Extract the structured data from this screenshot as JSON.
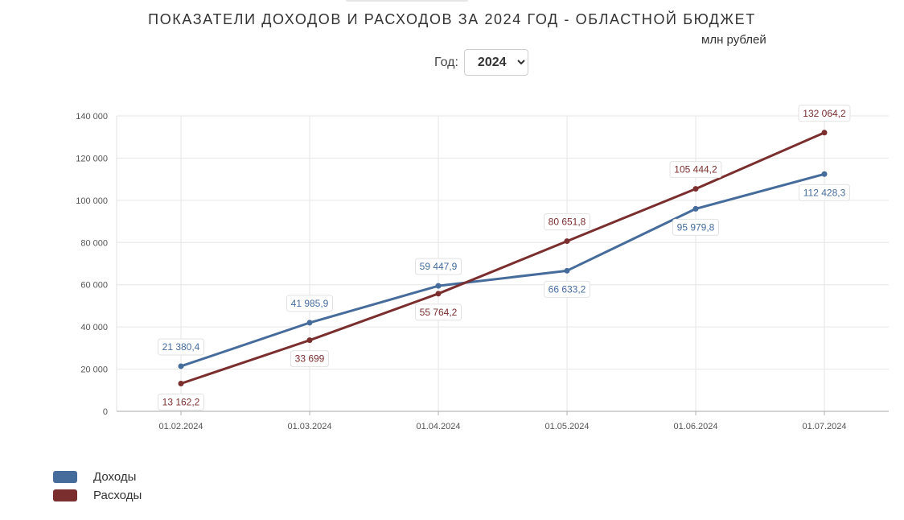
{
  "header": {
    "title": "ПОКАЗАТЕЛИ ДОХОДОВ И РАСХОДОВ ЗА 2024 ГОД - ОБЛАСТНОЙ БЮДЖЕТ",
    "units": "млн рублей",
    "year_label": "Год:",
    "year_value": "2024"
  },
  "chart_data": {
    "type": "line",
    "title": "ПОКАЗАТЕЛИ ДОХОДОВ И РАСХОДОВ ЗА 2024 ГОД - ОБЛАСТНОЙ БЮДЖЕТ",
    "xlabel": "",
    "ylabel": "",
    "categories": [
      "01.02.2024",
      "01.03.2024",
      "01.04.2024",
      "01.05.2024",
      "01.06.2024",
      "01.07.2024"
    ],
    "ylim": [
      0,
      140000
    ],
    "yticks": [
      0,
      20000,
      40000,
      60000,
      80000,
      100000,
      120000,
      140000
    ],
    "ytick_labels": [
      "0",
      "20 000",
      "40 000",
      "60 000",
      "80 000",
      "100 000",
      "120 000",
      "140 000"
    ],
    "grid": true,
    "legend_position": "bottom-left",
    "series": [
      {
        "name": "Доходы",
        "color": "#456c9b",
        "values": [
          21380.4,
          41985.9,
          59447.9,
          66633.2,
          95979.8,
          112428.3
        ],
        "labels": [
          "21 380,4",
          "41 985,9",
          "59 447,9",
          "66 633,2",
          "95 979,8",
          "112 428,3"
        ],
        "label_side": [
          "above",
          "above",
          "above",
          "below",
          "below",
          "below"
        ]
      },
      {
        "name": "Расходы",
        "color": "#7a2e2e",
        "values": [
          13162.2,
          33699,
          55764.2,
          80651.8,
          105444.2,
          132064.2
        ],
        "labels": [
          "13 162,2",
          "33 699",
          "55 764,2",
          "80 651,8",
          "105 444,2",
          "132 064,2"
        ],
        "label_side": [
          "below",
          "below",
          "below",
          "above",
          "above",
          "above"
        ]
      }
    ]
  }
}
